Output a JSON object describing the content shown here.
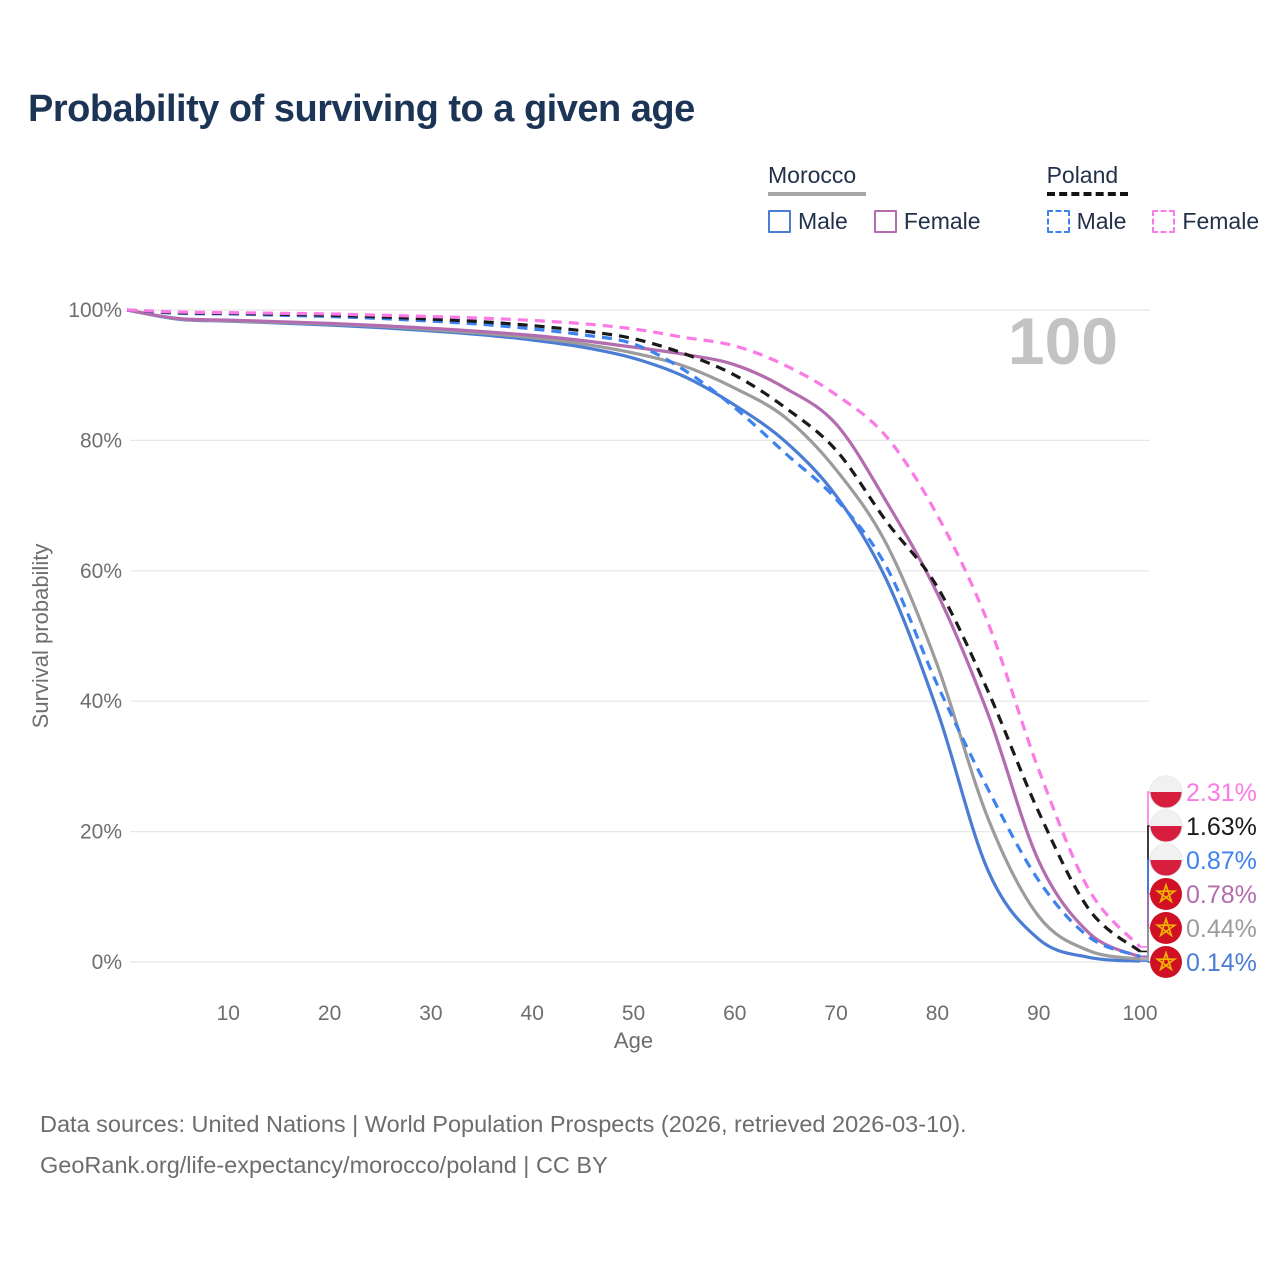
{
  "title": "Probability of surviving to a given age",
  "legend": {
    "groups": [
      {
        "label": "Morocco",
        "line_style": "solid",
        "line_color": "#a6a6a6",
        "items": [
          {
            "label": "Male",
            "color": "#4a7dd3",
            "dashed": false
          },
          {
            "label": "Female",
            "color": "#b36daf",
            "dashed": false
          }
        ]
      },
      {
        "label": "Poland",
        "line_style": "dashed",
        "line_color": "#141414",
        "items": [
          {
            "label": "Male",
            "color": "#3e82f0",
            "dashed": true
          },
          {
            "label": "Female",
            "color": "#fb7ae6",
            "dashed": true
          }
        ]
      }
    ]
  },
  "chart_data": {
    "type": "line",
    "title": "Probability of surviving to a given age",
    "xlabel": "Age",
    "ylabel": "Survival probability",
    "xlim": [
      0,
      100
    ],
    "ylim": [
      0,
      100
    ],
    "grid": "horizontal",
    "legend_position": "top-right",
    "hover_age_indicator": "100",
    "x_ticks": [
      10,
      20,
      30,
      40,
      50,
      60,
      70,
      80,
      90,
      100
    ],
    "y_ticks": [
      "0%",
      "20%",
      "40%",
      "60%",
      "80%",
      "100%"
    ],
    "ages": [
      0,
      5,
      10,
      15,
      20,
      25,
      30,
      35,
      40,
      45,
      50,
      55,
      60,
      65,
      70,
      75,
      80,
      85,
      90,
      95,
      100
    ],
    "series": [
      {
        "name": "Poland Female",
        "country": "Poland",
        "sex": "Female",
        "color": "#fb7ae6",
        "dashed": true,
        "flag": "poland",
        "end_label": "2.31%",
        "values": [
          100,
          99.7,
          99.6,
          99.5,
          99.4,
          99.2,
          99.0,
          98.75,
          98.4,
          97.9,
          97.1,
          95.8,
          94.5,
          91.5,
          87.0,
          80.5,
          68.5,
          52.0,
          29.5,
          11.0,
          2.31
        ]
      },
      {
        "name": "Poland (both sexes)",
        "country": "Poland",
        "sex": "Both",
        "color": "#1a1a1a",
        "dashed": true,
        "flag": "poland",
        "end_label": "1.63%",
        "values": [
          100,
          99.6,
          99.5,
          99.35,
          99.2,
          98.95,
          98.6,
          98.2,
          97.6,
          96.8,
          95.6,
          93.3,
          90.0,
          85.0,
          78.5,
          67.5,
          57.5,
          41.5,
          23.0,
          8.0,
          1.63
        ]
      },
      {
        "name": "Poland Male",
        "country": "Poland",
        "sex": "Male",
        "color": "#3e82f0",
        "dashed": true,
        "flag": "poland",
        "end_label": "0.87%",
        "values": [
          100,
          99.5,
          99.4,
          99.2,
          99.0,
          98.7,
          98.3,
          97.8,
          97.1,
          96.2,
          94.8,
          90.8,
          85.0,
          78.0,
          71.0,
          60.5,
          42.5,
          26.5,
          12.5,
          3.8,
          0.87
        ]
      },
      {
        "name": "Morocco Female",
        "country": "Morocco",
        "sex": "Female",
        "color": "#b36daf",
        "dashed": false,
        "flag": "morocco",
        "end_label": "0.78%",
        "values": [
          100,
          98.7,
          98.45,
          98.2,
          97.95,
          97.6,
          97.2,
          96.7,
          96.1,
          95.3,
          94.3,
          93.2,
          91.6,
          88.0,
          82.5,
          70.5,
          56.5,
          38.0,
          15.5,
          4.4,
          0.78
        ]
      },
      {
        "name": "Morocco (both sexes)",
        "country": "Morocco",
        "sex": "Both",
        "color": "#9c9c9c",
        "dashed": false,
        "flag": "morocco",
        "end_label": "0.44%",
        "values": [
          100,
          98.65,
          98.35,
          98.1,
          97.85,
          97.5,
          97.0,
          96.45,
          95.75,
          94.8,
          93.4,
          91.4,
          88.0,
          83.5,
          75.5,
          64.0,
          45.5,
          22.0,
          7.0,
          1.7,
          0.44
        ]
      },
      {
        "name": "Morocco Male",
        "country": "Morocco",
        "sex": "Male",
        "color": "#4a7dd3",
        "dashed": false,
        "flag": "morocco",
        "end_label": "0.14%",
        "values": [
          100,
          98.6,
          98.3,
          98.0,
          97.7,
          97.3,
          96.8,
          96.2,
          95.4,
          94.3,
          92.6,
          89.8,
          85.4,
          79.8,
          71.5,
          58.5,
          38.5,
          14.0,
          3.5,
          0.7,
          0.14
        ]
      }
    ],
    "flag_colors": {
      "poland_white": "#f1f1f1",
      "poland_red": "#d81e3f",
      "poland_ring": "#e2e2e2",
      "morocco_red": "#d01125",
      "morocco_star": "#f0b400"
    },
    "style": {
      "grid_color": "#e8e8e8",
      "axis_text_color": "#6e6e6e",
      "watermark_color": "#c3c3c3"
    }
  },
  "footer": {
    "line1": "Data sources: United Nations | World Population Prospects (2026, retrieved 2026-03-10).",
    "line2": "GeoRank.org/life-expectancy/morocco/poland | CC BY"
  }
}
